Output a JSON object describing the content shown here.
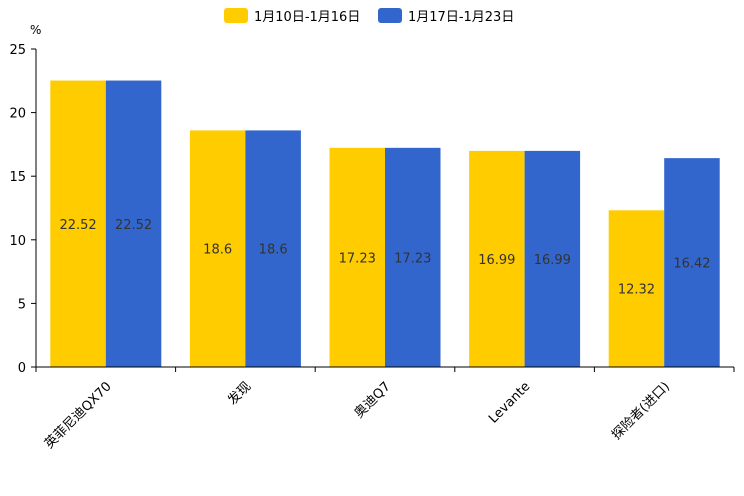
{
  "chart_data": {
    "type": "bar",
    "title": "",
    "unit": "%",
    "categories": [
      "英菲尼迪QX70",
      "发现",
      "奥迪Q7",
      "Levante",
      "探险者(进口)"
    ],
    "series": [
      {
        "name": "1月10日-1月16日",
        "color": "#FFCC00",
        "values": [
          22.52,
          18.6,
          17.23,
          16.99,
          12.32
        ]
      },
      {
        "name": "1月17日-1月23日",
        "color": "#3366CC",
        "values": [
          22.52,
          18.6,
          17.23,
          16.99,
          16.42
        ]
      }
    ],
    "ylim": [
      0,
      25
    ],
    "yticks": [
      0,
      5,
      10,
      15,
      20,
      25
    ],
    "legend_position": "top-center",
    "grid": false
  }
}
